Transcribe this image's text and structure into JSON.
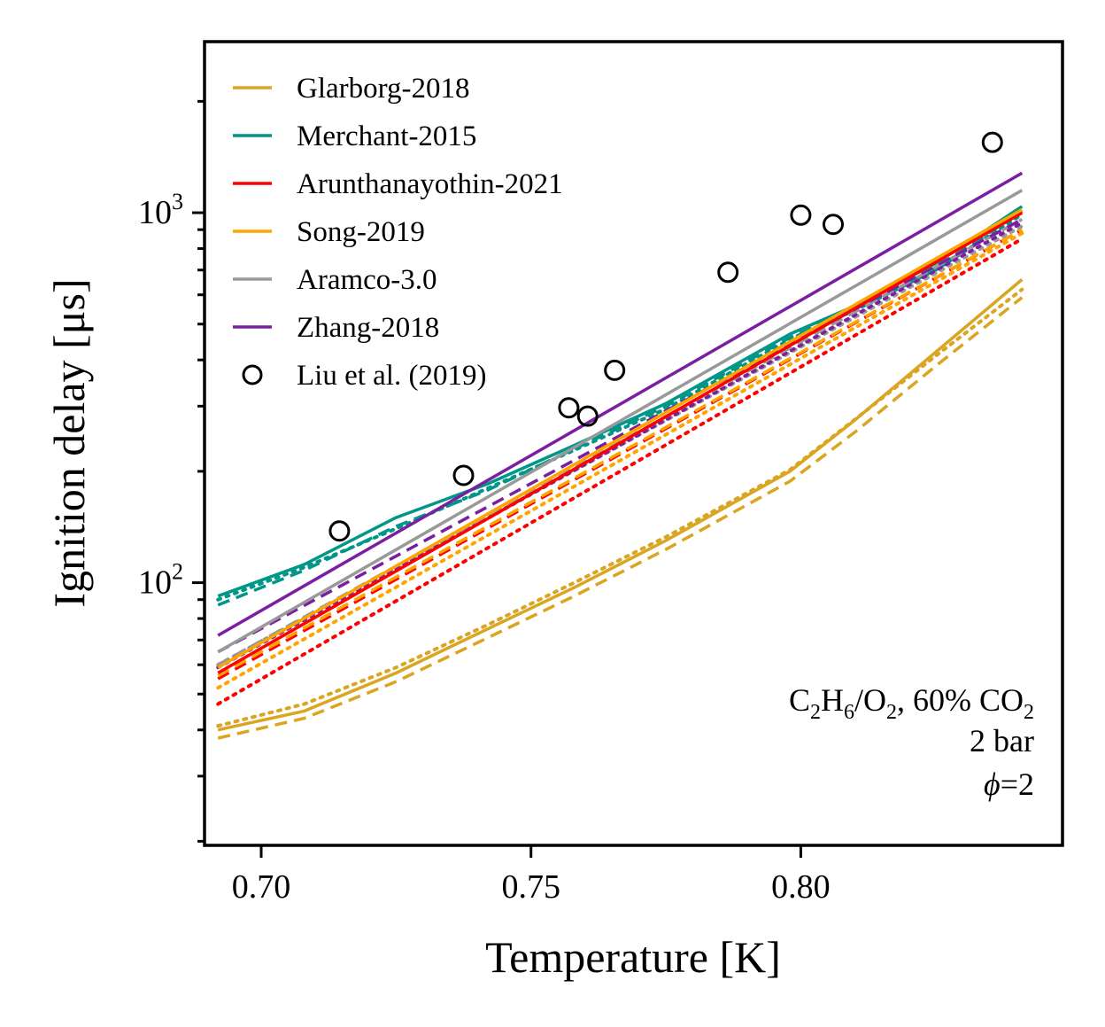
{
  "chart_data": {
    "type": "line",
    "xlabel": "Temperature [K]",
    "ylabel": "Ignition delay [μs]",
    "xlim": [
      0.6895,
      0.8485
    ],
    "ylim": [
      19.5,
      2900
    ],
    "yscale": "log",
    "x_ticks": [
      0.7,
      0.75,
      0.8
    ],
    "x_tick_labels": [
      "0.70",
      "0.75",
      "0.80"
    ],
    "y_tick_labels": [
      {
        "value": 100,
        "base": "10",
        "exp": "2"
      },
      {
        "value": 1000,
        "base": "10",
        "exp": "3"
      }
    ],
    "annotation": {
      "line1": {
        "a": "C",
        "b": "2",
        "c": "H",
        "d": "6",
        "e": "/O",
        "f": "2",
        "g": ", 60% CO",
        "h": "2"
      },
      "line2": "2 bar",
      "line3": {
        "phi": "ϕ",
        "rest": "=2"
      }
    },
    "legend_position": "upper-left",
    "series": [
      {
        "name": "Glarborg-2018",
        "color": "#DAA520",
        "styles": {
          "solid": {
            "x": [
              0.692,
              0.708,
              0.725,
              0.742,
              0.758,
              0.775,
              0.798,
              0.81,
              0.825,
              0.841
            ],
            "y": [
              40,
              45,
              57,
              75,
              97,
              130,
              200,
              275,
              420,
              660
            ]
          },
          "dashed": {
            "x": [
              0.692,
              0.708,
              0.725,
              0.742,
              0.758,
              0.775,
              0.798,
              0.81,
              0.825,
              0.841
            ],
            "y": [
              38,
              43,
              54,
              71,
              92,
              123,
              188,
              255,
              385,
              590
            ]
          },
          "dotted": {
            "x": [
              0.692,
              0.708,
              0.725,
              0.742,
              0.758,
              0.775,
              0.798,
              0.81,
              0.825,
              0.841
            ],
            "y": [
              41,
              47,
              59,
              77,
              100,
              133,
              202,
              276,
              410,
              620
            ]
          }
        }
      },
      {
        "name": "Merchant-2015",
        "color": "#009688",
        "styles": {
          "solid": {
            "x": [
              0.692,
              0.708,
              0.725,
              0.742,
              0.758,
              0.775,
              0.798,
              0.81,
              0.825,
              0.841
            ],
            "y": [
              92,
              112,
              150,
              185,
              235,
              305,
              470,
              560,
              730,
              1040
            ]
          },
          "dashed": {
            "x": [
              0.692,
              0.708,
              0.725,
              0.742,
              0.758,
              0.775,
              0.798,
              0.81,
              0.825,
              0.841
            ],
            "y": [
              87,
              108,
              142,
              178,
              230,
              300,
              460,
              550,
              710,
              1010
            ]
          },
          "dotted": {
            "x": [
              0.692,
              0.708,
              0.725,
              0.742,
              0.758,
              0.775,
              0.798,
              0.81,
              0.825,
              0.841
            ],
            "y": [
              90,
              110,
              140,
              180,
              228,
              295,
              455,
              545,
              700,
              990
            ]
          }
        }
      },
      {
        "name": "Arunthanayothin-2021",
        "color": "#FF0000",
        "styles": {
          "solid": {
            "x": [
              0.692,
              0.841
            ],
            "y": [
              57,
              1000
            ]
          },
          "dashed": {
            "x": [
              0.692,
              0.841
            ],
            "y": [
              55,
              900
            ]
          },
          "dotted": {
            "x": [
              0.692,
              0.841
            ],
            "y": [
              47,
              850
            ]
          }
        }
      },
      {
        "name": "Song-2019",
        "color": "#FFA500",
        "styles": {
          "solid": {
            "x": [
              0.692,
              0.841
            ],
            "y": [
              59,
              1020
            ]
          },
          "dashed": {
            "x": [
              0.692,
              0.841
            ],
            "y": [
              56,
              900
            ]
          },
          "dotted": {
            "x": [
              0.692,
              0.841
            ],
            "y": [
              52,
              880
            ]
          }
        }
      },
      {
        "name": "Aramco-3.0",
        "color": "#999999",
        "styles": {
          "solid": {
            "x": [
              0.692,
              0.841
            ],
            "y": [
              65,
              1150
            ]
          },
          "dashed": {
            "x": [
              0.692,
              0.841
            ],
            "y": [
              60,
              960
            ]
          },
          "dotted": {
            "x": [
              0.692,
              0.841
            ],
            "y": [
              60,
              920
            ]
          }
        }
      },
      {
        "name": "Zhang-2018",
        "color": "#7B1FA2",
        "styles": {
          "solid": {
            "x": [
              0.692,
              0.841
            ],
            "y": [
              72,
              1280
            ]
          },
          "dashed": {
            "x": [
              0.692,
              0.841
            ],
            "y": [
              65,
              960
            ]
          },
          "dotted": {
            "x": [
              0.692,
              0.841
            ],
            "y": [
              59,
              940
            ]
          }
        }
      },
      {
        "name": "Liu et al. (2019)",
        "color": "#000000",
        "marker": "open-circle",
        "x": [
          0.7145,
          0.7375,
          0.757,
          0.7605,
          0.7655,
          0.7865,
          0.8,
          0.806,
          0.8355
        ],
        "y": [
          138,
          195,
          297,
          282,
          375,
          690,
          985,
          930,
          1550
        ]
      }
    ]
  }
}
